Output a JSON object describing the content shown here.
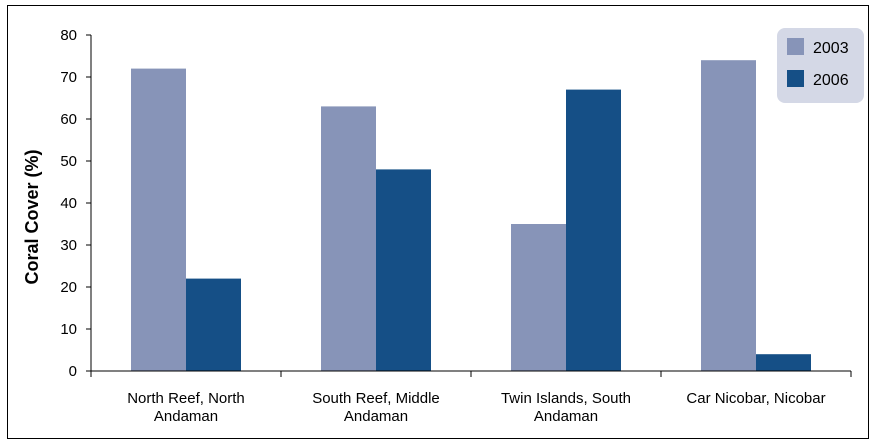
{
  "chart_data": {
    "type": "bar",
    "title": "",
    "xlabel": "",
    "ylabel": "Coral Cover (%)",
    "ylim": [
      0,
      80
    ],
    "yticks": [
      0,
      10,
      20,
      30,
      40,
      50,
      60,
      70,
      80
    ],
    "categories": [
      [
        "North Reef, North",
        "Andaman"
      ],
      [
        "South Reef, Middle",
        "Andaman"
      ],
      [
        "Twin Islands, South",
        "Andaman"
      ],
      [
        "Car Nicobar, Nicobar"
      ]
    ],
    "series": [
      {
        "name": "2003",
        "color": "#8794b8",
        "values": [
          72,
          63,
          35,
          74
        ]
      },
      {
        "name": "2006",
        "color": "#154f86",
        "values": [
          22,
          48,
          67,
          4
        ]
      }
    ],
    "grid": false,
    "legend_position": "top-right",
    "legend_background": "#d4d8e6"
  }
}
